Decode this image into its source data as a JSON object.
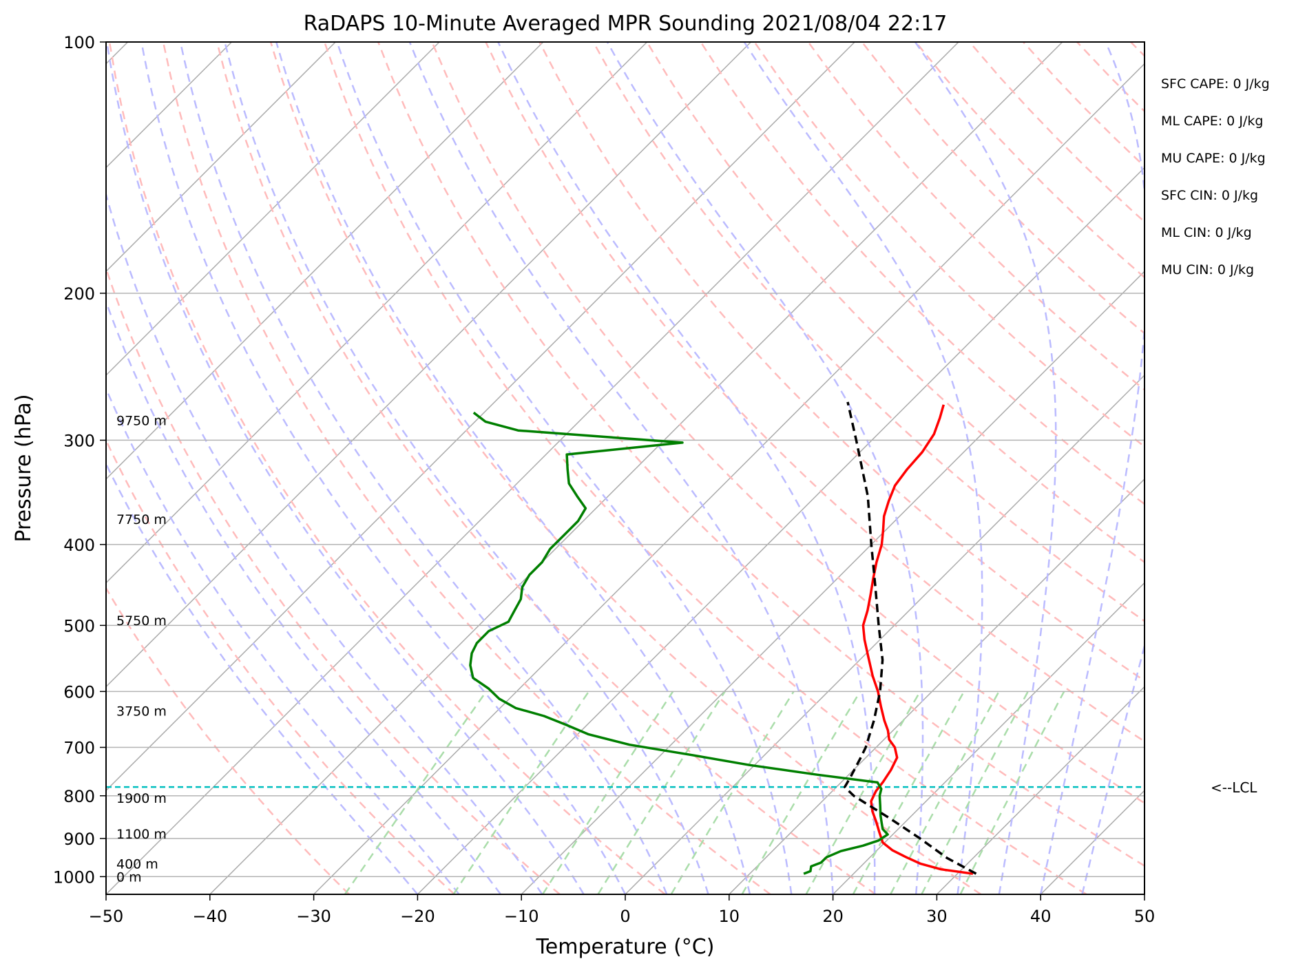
{
  "chart_data": {
    "type": "line",
    "title": "RaDAPS 10-Minute Averaged MPR Sounding 2021/08/04 22:17",
    "xlabel": "Temperature (°C)",
    "ylabel": "Pressure (hPa)",
    "xlim": [
      -50,
      50
    ],
    "ylim": [
      1050,
      100
    ],
    "y_scale": "log",
    "skew": "skew-T log-p",
    "grid": true,
    "x_ticks": [
      -50,
      -40,
      -30,
      -20,
      -10,
      0,
      10,
      20,
      30,
      40,
      50
    ],
    "x_tick_labels": [
      "−50",
      "−40",
      "−30",
      "−20",
      "−10",
      "0",
      "10",
      "20",
      "30",
      "40",
      "50"
    ],
    "y_ticks": [
      100,
      200,
      300,
      400,
      500,
      600,
      700,
      800,
      900,
      1000
    ],
    "y_tick_labels": [
      "100",
      "200",
      "300",
      "400",
      "500",
      "600",
      "700",
      "800",
      "900",
      "1000"
    ],
    "series": [
      {
        "role": "temperature",
        "color": "#ff0000",
        "pressure": [
          992,
          980,
          965,
          948,
          930,
          910,
          885,
          860,
          835,
          812,
          790,
          770,
          745,
          720,
          700,
          685,
          668,
          650,
          625,
          600,
          575,
          545,
          520,
          500,
          480,
          460,
          440,
          420,
          400,
          385,
          370,
          355,
          340,
          325,
          310,
          295,
          282,
          272
        ],
        "temperature": [
          31.5,
          28,
          25.5,
          23.5,
          21.5,
          19.8,
          18.5,
          17.2,
          15.8,
          14.7,
          14.2,
          14.0,
          13.6,
          13.0,
          11.8,
          10.5,
          9.5,
          8.2,
          6.5,
          4.8,
          2.8,
          0.5,
          -1.5,
          -3.0,
          -4.0,
          -5.2,
          -6.5,
          -7.8,
          -9.0,
          -10.2,
          -11.5,
          -12.5,
          -13.4,
          -13.8,
          -14.0,
          -14.6,
          -15.6,
          -16.5
        ]
      },
      {
        "role": "dewpoint",
        "color": "#007f00",
        "pressure": [
          992,
          985,
          972,
          962,
          948,
          932,
          918,
          905,
          890,
          877,
          862,
          845,
          822,
          800,
          785,
          771,
          755,
          735,
          715,
          695,
          675,
          658,
          642,
          628,
          612,
          595,
          578,
          558,
          540,
          525,
          508,
          495,
          480,
          465,
          450,
          435,
          420,
          405,
          390,
          375,
          362,
          350,
          338,
          325,
          312,
          302,
          292,
          285,
          278
        ],
        "temperature": [
          15.2,
          15.6,
          15.2,
          15.8,
          15.8,
          16.6,
          18.2,
          19.2,
          19.5,
          18.5,
          17.8,
          17.0,
          16.0,
          15.0,
          14.5,
          13.5,
          7.0,
          -0.5,
          -7.0,
          -14.0,
          -19.0,
          -22.0,
          -25.0,
          -28.5,
          -31.0,
          -33.0,
          -35.5,
          -37.0,
          -38.0,
          -38.5,
          -38.5,
          -37.5,
          -38.0,
          -38.5,
          -39.5,
          -40.0,
          -40.0,
          -40.5,
          -40.5,
          -40.5,
          -41.0,
          -43.0,
          -45.0,
          -46.5,
          -48.0,
          -38.0,
          -55.0,
          -59.0,
          -61.0
        ]
      },
      {
        "role": "parcel",
        "color": "#000000",
        "pressure": [
          992,
          950,
          900,
          850,
          800,
          781,
          760,
          720,
          700,
          650,
          600,
          550,
          500,
          450,
          400,
          350,
          300,
          270
        ],
        "temperature": [
          31.8,
          27.5,
          23.0,
          18.0,
          12.5,
          10.8,
          10.4,
          9.5,
          9.0,
          7.2,
          5.0,
          2.2,
          -1.5,
          -5.5,
          -10.0,
          -15.0,
          -21.5,
          -26.0
        ]
      }
    ],
    "lcl_pressure": 781,
    "lcl_label": "<--LCL",
    "height_labels": [
      {
        "pressure": 1000,
        "label": "0 m"
      },
      {
        "pressure": 965,
        "label": "400 m"
      },
      {
        "pressure": 888,
        "label": "1100 m"
      },
      {
        "pressure": 805,
        "label": "1900 m"
      },
      {
        "pressure": 633,
        "label": "3750 m"
      },
      {
        "pressure": 493,
        "label": "5750 m"
      },
      {
        "pressure": 373,
        "label": "7750 m"
      },
      {
        "pressure": 284,
        "label": "9750 m"
      }
    ],
    "stats": [
      "SFC CAPE: 0 J/kg",
      "ML CAPE: 0 J/kg",
      "MU CAPE: 0 J/kg",
      "SFC CIN: 0 J/kg",
      "ML CIN: 0 J/kg",
      "MU CIN: 0 J/kg"
    ],
    "background_lines": {
      "isotherms_color": "#aaaaaa",
      "dry_adiabats_color": "#ffbbbb",
      "moist_adiabats_color": "#bbbbff",
      "mixing_ratio_color": "#aaddaa",
      "lcl_line_color": "#00bfbf",
      "gridline_color": "#b3b3b3"
    }
  }
}
